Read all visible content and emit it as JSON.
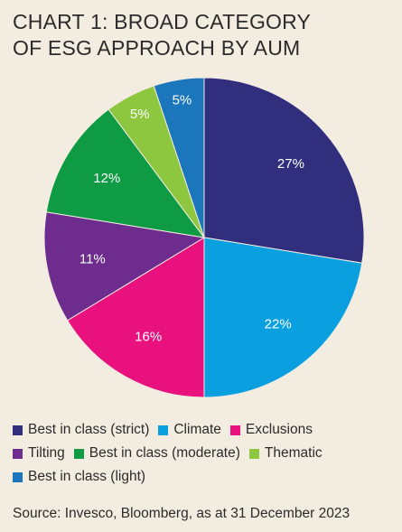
{
  "chart_data": {
    "type": "pie",
    "title_lines": [
      "CHART 1: BROAD CATEGORY",
      "OF ESG APPROACH BY AUM"
    ],
    "slices": [
      {
        "name": "Best in class (strict)",
        "value": 27,
        "label": "27%",
        "color": "#312f7d"
      },
      {
        "name": "Climate",
        "value": 22,
        "label": "22%",
        "color": "#0aa0e0"
      },
      {
        "name": "Exclusions",
        "value": 16,
        "label": "16%",
        "color": "#e8117d"
      },
      {
        "name": "Tilting",
        "value": 11,
        "label": "11%",
        "color": "#6f2c8f"
      },
      {
        "name": "Best in class (moderate)",
        "value": 12,
        "label": "12%",
        "color": "#0e9b43"
      },
      {
        "name": "Thematic",
        "value": 5,
        "label": "5%",
        "color": "#8dc63f"
      },
      {
        "name": "Best in class (light)",
        "value": 5,
        "label": "5%",
        "color": "#1b76bc"
      }
    ],
    "legend_rows": [
      [
        "Best in class (strict)",
        "Climate",
        "Exclusions"
      ],
      [
        "Tilting",
        "Best in class (moderate)",
        "Thematic"
      ],
      [
        "Best in class (light)"
      ]
    ],
    "source": "Source: Invesco, Bloomberg, as at 31 December 2023"
  }
}
